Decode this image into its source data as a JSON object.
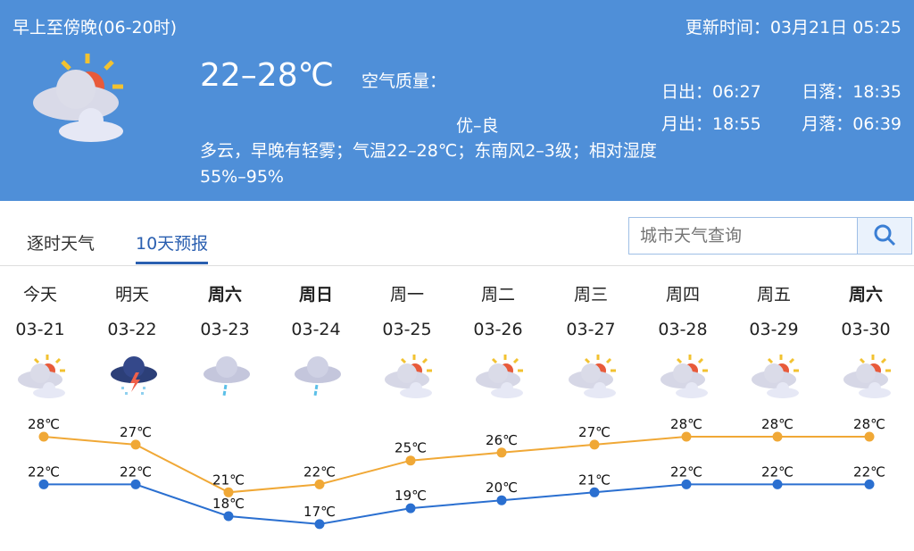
{
  "header": {
    "period": "早上至傍晚(06-20时)",
    "update_time": "更新时间：03月21日 05:25",
    "temp_range": "22–28℃",
    "air_quality_label": "空气质量：",
    "air_quality_value": "优–良",
    "description": "多云，早晚有轻雾；气温22–28℃；东南风2–3级；相对湿度55%–95%",
    "sunrise": "日出：06:27",
    "sunset": "日落：18:35",
    "moonrise": "月出：18:55",
    "moonset": "月落：06:39",
    "icon": "partly-cloudy-icon"
  },
  "tabs": [
    {
      "label": "逐时天气",
      "active": false
    },
    {
      "label": "10天预报",
      "active": true
    }
  ],
  "search": {
    "placeholder": "城市天气查询",
    "icon": "search-icon"
  },
  "days": [
    {
      "name": "今天",
      "date": "03-21",
      "icon": "partly-cloudy",
      "bold": false,
      "high": "28℃",
      "low": "22℃"
    },
    {
      "name": "明天",
      "date": "03-22",
      "icon": "thunderstorm",
      "bold": false,
      "high": "27℃",
      "low": "22℃"
    },
    {
      "name": "周六",
      "date": "03-23",
      "icon": "light-rain",
      "bold": true,
      "high": "21℃",
      "low": "18℃"
    },
    {
      "name": "周日",
      "date": "03-24",
      "icon": "light-rain",
      "bold": true,
      "high": "22℃",
      "low": "17℃"
    },
    {
      "name": "周一",
      "date": "03-25",
      "icon": "partly-cloudy",
      "bold": false,
      "high": "25℃",
      "low": "19℃"
    },
    {
      "name": "周二",
      "date": "03-26",
      "icon": "partly-cloudy",
      "bold": false,
      "high": "26℃",
      "low": "20℃"
    },
    {
      "name": "周三",
      "date": "03-27",
      "icon": "partly-cloudy",
      "bold": false,
      "high": "27℃",
      "low": "21℃"
    },
    {
      "name": "周四",
      "date": "03-28",
      "icon": "partly-cloudy",
      "bold": false,
      "high": "28℃",
      "low": "22℃"
    },
    {
      "name": "周五",
      "date": "03-29",
      "icon": "partly-cloudy",
      "bold": false,
      "high": "28℃",
      "low": "22℃"
    },
    {
      "name": "周六",
      "date": "03-30",
      "icon": "partly-cloudy",
      "bold": true,
      "high": "28℃",
      "low": "22℃"
    }
  ],
  "chart_data": {
    "type": "line",
    "categories": [
      "03-21",
      "03-22",
      "03-23",
      "03-24",
      "03-25",
      "03-26",
      "03-27",
      "03-28",
      "03-29",
      "03-30"
    ],
    "series": [
      {
        "values": [
          28,
          27,
          21,
          22,
          25,
          26,
          27,
          28,
          28,
          28
        ],
        "color": "#f0a836"
      },
      {
        "values": [
          22,
          22,
          18,
          17,
          19,
          20,
          21,
          22,
          22,
          22
        ],
        "color": "#2a6fd0"
      }
    ],
    "unit": "℃"
  },
  "colors": {
    "header_bg": "#4f8fd8",
    "accent": "#2a5fb0"
  }
}
